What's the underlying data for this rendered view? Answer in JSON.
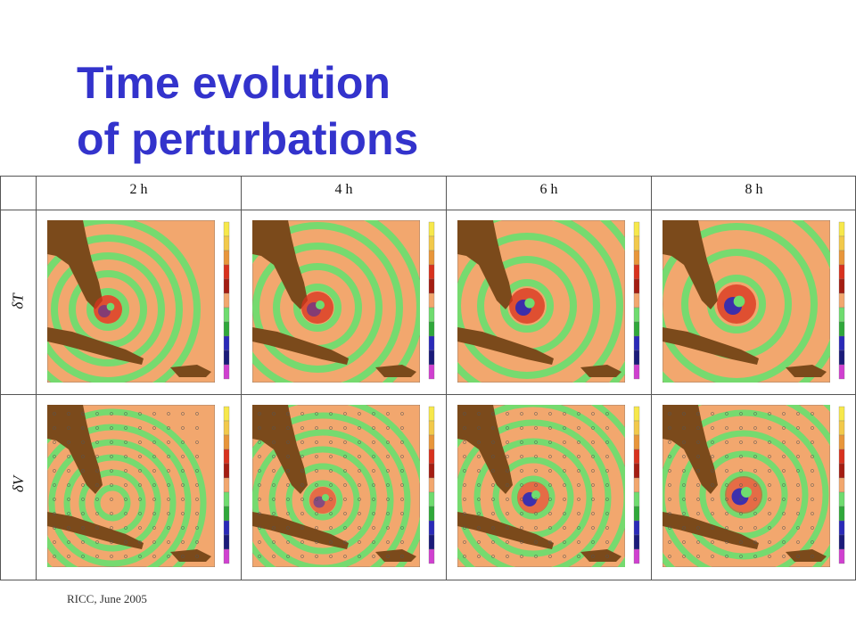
{
  "slide": {
    "title_line1": "Time evolution",
    "title_line2": "of perturbations",
    "footer": "RICC, June 2005"
  },
  "table": {
    "columns": [
      "2 h",
      "4 h",
      "6 h",
      "8 h"
    ],
    "rows": [
      "δT",
      "δV"
    ]
  },
  "colors": {
    "title": "#3333cc",
    "background_land": "#7b4a1b",
    "field_orange": "#f2a76e",
    "field_green": "#6fdc6f",
    "positive": "#d8321e",
    "negative": "#2a2ab8"
  }
}
